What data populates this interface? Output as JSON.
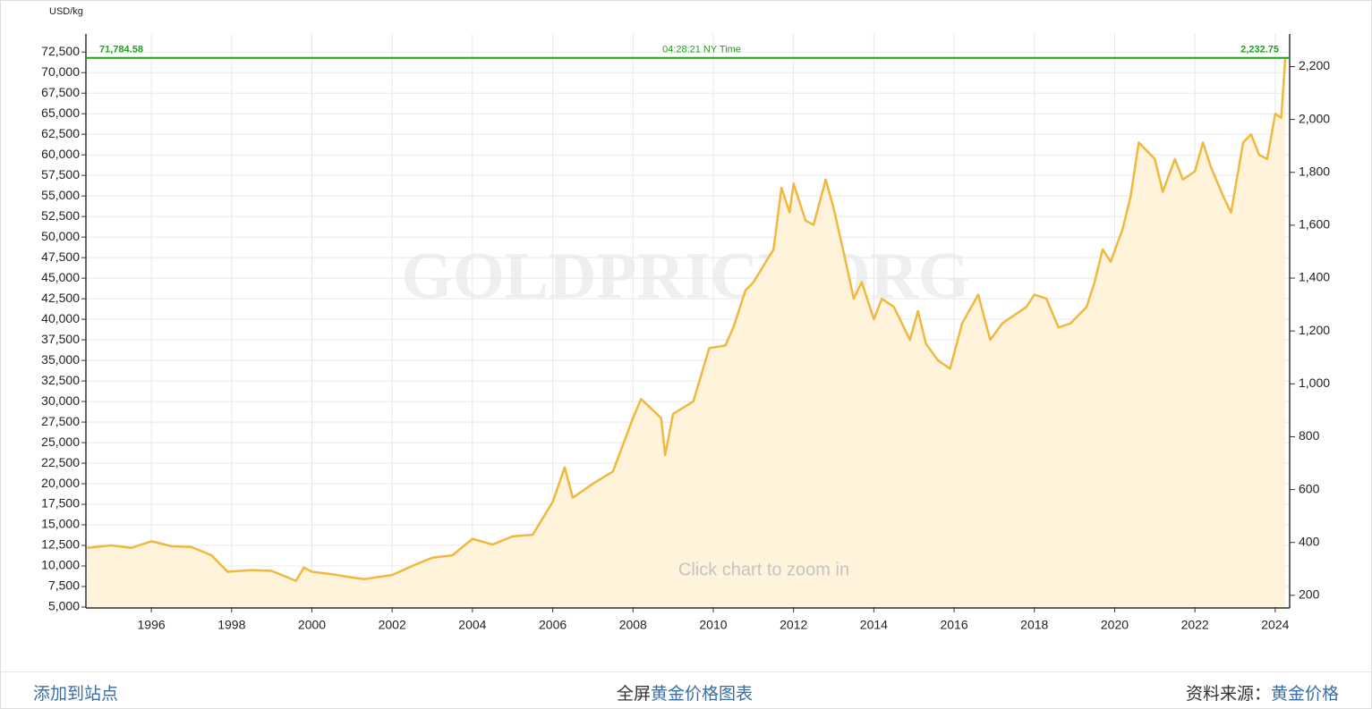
{
  "chart_data": {
    "type": "area",
    "y_label": "USD/kg",
    "watermark": "GOLDPRICE.ORG",
    "hint": "Click chart to zoom in",
    "time_label": "04:28:21 NY Time",
    "current": {
      "value": 71784.58,
      "label": "71,784.58"
    },
    "current_y2": {
      "value": 2232.75,
      "label": "2,232.75"
    },
    "current_color": "#1aa51a",
    "color": "#f0b83c",
    "area_color": "#fff3dc",
    "grid": true,
    "x": [
      1994.4,
      1995.0,
      1995.5,
      1996.0,
      1996.5,
      1997.0,
      1997.5,
      1997.9,
      1998.5,
      1999.0,
      1999.6,
      1999.8,
      2000.0,
      2000.5,
      2001.0,
      2001.3,
      2002.0,
      2002.5,
      2003.0,
      2003.5,
      2004.0,
      2004.5,
      2005.0,
      2005.5,
      2006.0,
      2006.3,
      2006.5,
      2007.0,
      2007.5,
      2008.0,
      2008.2,
      2008.7,
      2008.8,
      2009.0,
      2009.5,
      2009.9,
      2010.3,
      2010.5,
      2010.8,
      2011.0,
      2011.5,
      2011.7,
      2011.9,
      2012.0,
      2012.3,
      2012.5,
      2012.8,
      2013.0,
      2013.3,
      2013.5,
      2013.7,
      2014.0,
      2014.2,
      2014.5,
      2014.9,
      2015.1,
      2015.3,
      2015.6,
      2015.9,
      2016.2,
      2016.6,
      2016.9,
      2017.2,
      2017.5,
      2017.8,
      2018.0,
      2018.3,
      2018.6,
      2018.9,
      2019.3,
      2019.5,
      2019.7,
      2019.9,
      2020.2,
      2020.4,
      2020.6,
      2020.9,
      2021.0,
      2021.2,
      2021.5,
      2021.7,
      2022.0,
      2022.2,
      2022.4,
      2022.7,
      2022.9,
      2023.2,
      2023.4,
      2023.6,
      2023.8,
      2024.0,
      2024.15,
      2024.25
    ],
    "values": [
      12200,
      12500,
      12200,
      13000,
      12400,
      12300,
      11300,
      9300,
      9500,
      9400,
      8200,
      9800,
      9300,
      9000,
      8600,
      8400,
      8900,
      10000,
      11000,
      11300,
      13300,
      12600,
      13600,
      13800,
      17800,
      22000,
      18300,
      20000,
      21500,
      28000,
      30300,
      28000,
      23500,
      28500,
      30000,
      36500,
      36800,
      39000,
      43500,
      44500,
      48500,
      56000,
      53000,
      56500,
      52000,
      51500,
      57000,
      53500,
      47000,
      42500,
      44500,
      40000,
      42500,
      41500,
      37500,
      41000,
      37000,
      35000,
      34000,
      39500,
      43000,
      37500,
      39500,
      40500,
      41500,
      43000,
      42500,
      39000,
      39500,
      41500,
      44500,
      48500,
      47000,
      51000,
      55000,
      61500,
      60000,
      59500,
      55500,
      59500,
      57000,
      58000,
      61500,
      58500,
      55000,
      53000,
      61500,
      62500,
      60000,
      59500,
      65000,
      64500,
      71784.58
    ],
    "xlim": [
      1994.37,
      2024.36
    ],
    "xticks": [
      1996,
      1998,
      2000,
      2002,
      2004,
      2006,
      2008,
      2010,
      2012,
      2014,
      2016,
      2018,
      2020,
      2022,
      2024
    ],
    "ylim": [
      5000,
      74700
    ],
    "yticks": [
      {
        "value": 5000,
        "label": "5,000"
      },
      {
        "value": 7500,
        "label": "7,500"
      },
      {
        "value": 10000,
        "label": "10,000"
      },
      {
        "value": 12500,
        "label": "12,500"
      },
      {
        "value": 15000,
        "label": "15,000"
      },
      {
        "value": 17500,
        "label": "17,500"
      },
      {
        "value": 20000,
        "label": "20,000"
      },
      {
        "value": 22500,
        "label": "22,500"
      },
      {
        "value": 25000,
        "label": "25,000"
      },
      {
        "value": 27500,
        "label": "27,500"
      },
      {
        "value": 30000,
        "label": "30,000"
      },
      {
        "value": 32500,
        "label": "32,500"
      },
      {
        "value": 35000,
        "label": "35,000"
      },
      {
        "value": 37500,
        "label": "37,500"
      },
      {
        "value": 40000,
        "label": "40,000"
      },
      {
        "value": 42500,
        "label": "42,500"
      },
      {
        "value": 45000,
        "label": "45,000"
      },
      {
        "value": 47500,
        "label": "47,500"
      },
      {
        "value": 50000,
        "label": "50,000"
      },
      {
        "value": 52500,
        "label": "52,500"
      },
      {
        "value": 55000,
        "label": "55,000"
      },
      {
        "value": 57500,
        "label": "57,500"
      },
      {
        "value": 60000,
        "label": "60,000"
      },
      {
        "value": 62500,
        "label": "62,500"
      },
      {
        "value": 65000,
        "label": "65,000"
      },
      {
        "value": 67500,
        "label": "67,500"
      },
      {
        "value": 70000,
        "label": "70,000"
      },
      {
        "value": 72500,
        "label": "72,500"
      }
    ],
    "y2lim": [
      155.5,
      2323.4
    ],
    "y2ticks": [
      200,
      400,
      600,
      800,
      {
        "value": 1000,
        "label": "1,000"
      },
      {
        "value": 1200,
        "label": "1,200"
      },
      {
        "value": 1400,
        "label": "1,400"
      },
      {
        "value": 1600,
        "label": "1,600"
      },
      {
        "value": 1800,
        "label": "1,800"
      },
      {
        "value": 2000,
        "label": "2,000"
      },
      {
        "value": 2200,
        "label": "2,200"
      }
    ]
  },
  "footer": {
    "add_link": "添加到站点",
    "fullscreen_prefix": "全屏",
    "fullscreen_link": "黄金价格图表",
    "source_prefix": "资料来源：",
    "source_link": "黄金价格"
  }
}
